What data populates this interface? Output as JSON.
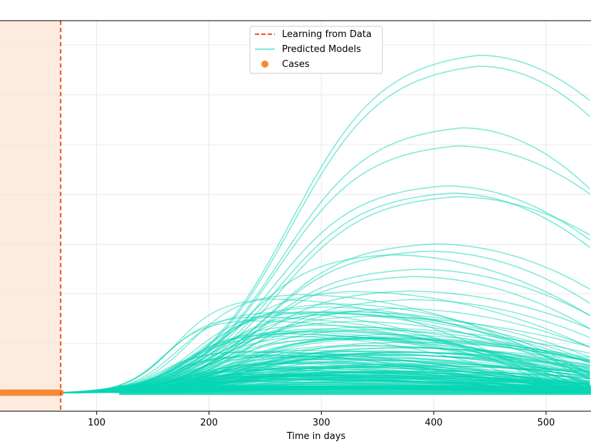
{
  "chart_data": {
    "type": "line",
    "xlabel": "Time in days",
    "ylabel": "",
    "xlim": [
      14,
      540
    ],
    "ylim": [
      0,
      1
    ],
    "xticks": [
      100,
      200,
      300,
      400,
      500
    ],
    "grid": true,
    "legend_position": "top-center",
    "legend": [
      {
        "label": "Learning from Data",
        "style": "dashed-line",
        "color": "#f0521e"
      },
      {
        "label": "Predicted Models",
        "style": "line",
        "color": "#7ee8dc"
      },
      {
        "label": "Cases",
        "style": "marker",
        "color": "#f58a32"
      }
    ],
    "learning_cutoff_day": 68,
    "cases_days": [
      14,
      68
    ],
    "highlighted_models": [
      {
        "peak_day": 440,
        "peak_level": 0.93
      },
      {
        "peak_day": 440,
        "peak_level": 0.9
      },
      {
        "peak_day": 425,
        "peak_level": 0.73
      },
      {
        "peak_day": 420,
        "peak_level": 0.68
      },
      {
        "peak_day": 410,
        "peak_level": 0.57
      },
      {
        "peak_day": 415,
        "peak_level": 0.55
      },
      {
        "peak_day": 420,
        "peak_level": 0.54
      },
      {
        "peak_day": 400,
        "peak_level": 0.41
      },
      {
        "peak_day": 395,
        "peak_level": 0.39
      },
      {
        "peak_day": 360,
        "peak_level": 0.38
      },
      {
        "peak_day": 385,
        "peak_level": 0.34
      },
      {
        "peak_day": 380,
        "peak_level": 0.32
      },
      {
        "peak_day": 375,
        "peak_level": 0.28
      }
    ],
    "colors": {
      "models": "#06d6b4",
      "models_light": "#7ee8dc",
      "cases": "#f58a32",
      "cutoff": "#f0521e",
      "shade": "#fdebdf",
      "grid": "#e8e8e8"
    }
  }
}
